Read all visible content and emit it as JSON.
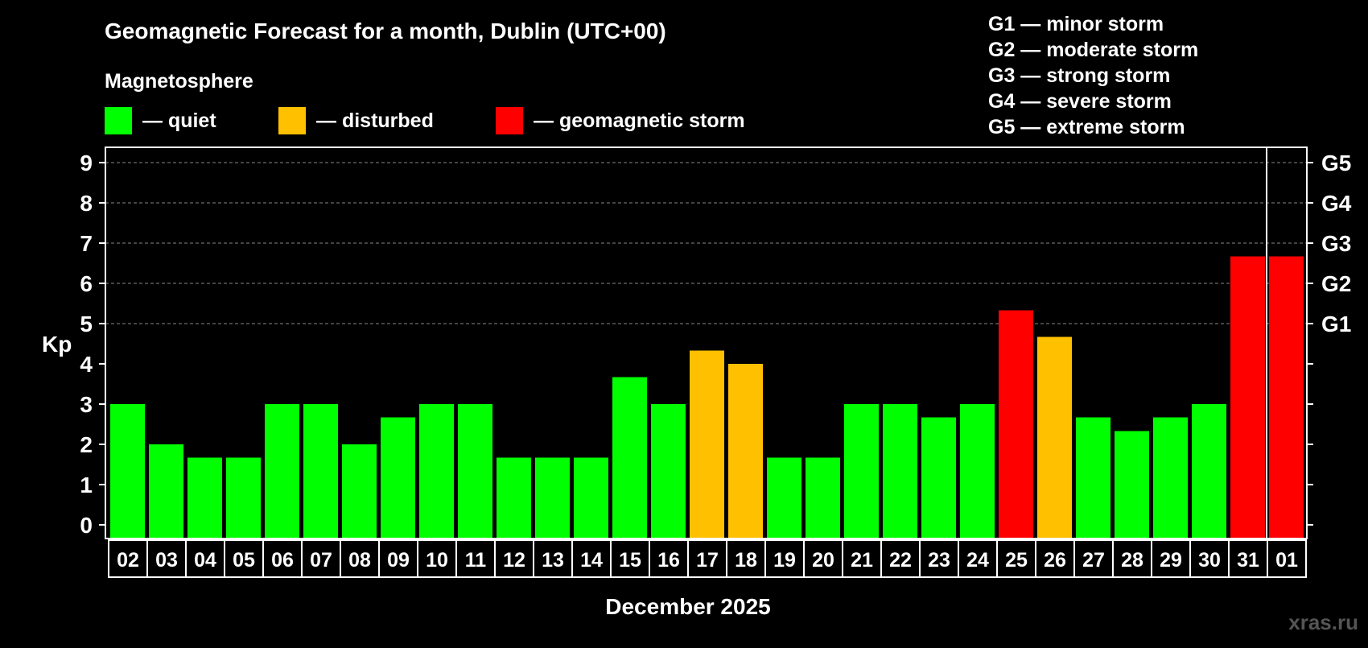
{
  "chart_data": {
    "type": "bar",
    "title": "Geomagnetic Forecast for a month, Dublin (UTC+00)",
    "legend_title": "Magnetosphere",
    "legend": [
      {
        "label": "— quiet",
        "color": "#00ff00"
      },
      {
        "label": "— disturbed",
        "color": "#ffc000"
      },
      {
        "label": "— geomagnetic storm",
        "color": "#ff0000"
      }
    ],
    "storm_levels": [
      "G1 — minor storm",
      "G2 — moderate storm",
      "G3 — strong storm",
      "G4 — severe storm",
      "G5 — extreme storm"
    ],
    "ylabel": "Kp",
    "xlabel": "December 2025",
    "ylim": [
      0,
      9
    ],
    "yticks": [
      "0",
      "1",
      "2",
      "3",
      "4",
      "5",
      "6",
      "7",
      "8",
      "9"
    ],
    "g_ticks": [
      {
        "label": "G1",
        "kp": 5
      },
      {
        "label": "G2",
        "kp": 6
      },
      {
        "label": "G3",
        "kp": 7
      },
      {
        "label": "G4",
        "kp": 8
      },
      {
        "label": "G5",
        "kp": 9
      }
    ],
    "grid": "dashed at Kp 5–9",
    "categories": [
      "02",
      "03",
      "04",
      "05",
      "06",
      "07",
      "08",
      "09",
      "10",
      "11",
      "12",
      "13",
      "14",
      "15",
      "16",
      "17",
      "18",
      "19",
      "20",
      "21",
      "22",
      "23",
      "24",
      "25",
      "26",
      "27",
      "28",
      "29",
      "30",
      "31",
      "01"
    ],
    "values": [
      3,
      2,
      1.67,
      1.67,
      3,
      3,
      2,
      2.67,
      3,
      3,
      1.67,
      1.67,
      1.67,
      3.67,
      3,
      4.33,
      4,
      1.67,
      1.67,
      3,
      3,
      2.67,
      3,
      5.33,
      4.67,
      2.67,
      2.33,
      2.67,
      3,
      6.67,
      6.67
    ],
    "colors": {
      "quiet": "#00ff00",
      "disturbed": "#ffc000",
      "storm": "#ff0000"
    }
  },
  "watermark": "xras.ru"
}
